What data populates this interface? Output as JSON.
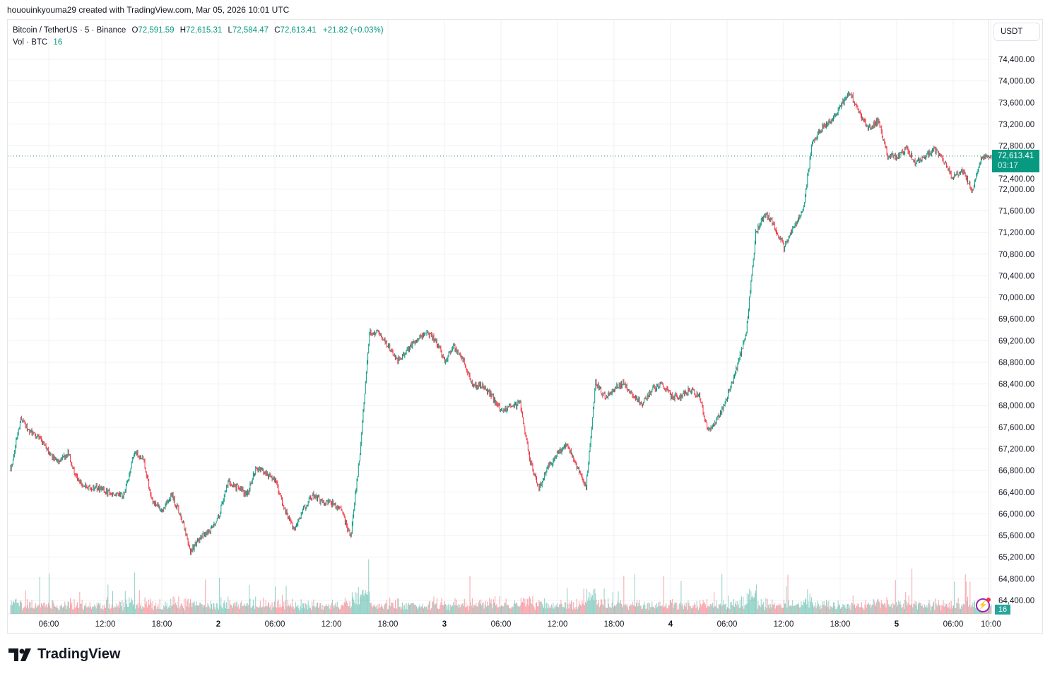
{
  "author_line": "hououinkyouma29 created with TradingView.com, Mar 05, 2026 10:01 UTC",
  "legend": {
    "symbol": "Bitcoin / TetherUS · 5 · Binance",
    "o_label": "O",
    "o": "72,591.59",
    "h_label": "H",
    "h": "72,615.31",
    "l_label": "L",
    "l": "72,584.47",
    "c_label": "C",
    "c": "72,613.41",
    "change": "+21.82 (+0.03%)",
    "vol_label": "Vol · BTC",
    "vol": "16"
  },
  "currency": "USDT",
  "last_price": "72,613.41",
  "countdown": "03:17",
  "volume_badge": "16",
  "logo_text": "TradingView",
  "icons": {
    "alert": "lightning-icon",
    "logo": "tradingview-logo-icon"
  },
  "colors": {
    "up": "#089981",
    "down": "#f23645",
    "price_label": "#089981",
    "volume_label": "#26a69a",
    "alert": "#9c27b0"
  },
  "chart_data": {
    "type": "candlestick",
    "symbol": "BTCUSDT",
    "interval": "5",
    "approx_hourly_closes_start": "2026-03-01 02:00",
    "approx_hourly_closes": [
      66870,
      67780,
      67520,
      67390,
      67130,
      66930,
      67130,
      66610,
      66480,
      66480,
      66410,
      66350,
      66350,
      67130,
      67000,
      66210,
      66080,
      66350,
      65950,
      65300,
      65560,
      65690,
      65950,
      66610,
      66480,
      66350,
      66870,
      66740,
      66610,
      66080,
      65690,
      66080,
      66350,
      66210,
      66210,
      66080,
      65560,
      67130,
      69350,
      69350,
      69090,
      68830,
      69020,
      69220,
      69350,
      69220,
      68830,
      69090,
      68830,
      68370,
      68370,
      68170,
      67910,
      67980,
      68040,
      67000,
      66480,
      66870,
      67130,
      67260,
      66870,
      66480,
      68430,
      68170,
      68300,
      68430,
      68170,
      68040,
      68300,
      68430,
      68170,
      68170,
      68300,
      68170,
      67520,
      67780,
      68170,
      68700,
      69350,
      71180,
      71570,
      71310,
      70910,
      71310,
      71570,
      72870,
      73130,
      73260,
      73530,
      73790,
      73400,
      73130,
      73260,
      72610,
      72610,
      72740,
      72480,
      72610,
      72740,
      72480,
      72220,
      72350,
      71960,
      72610,
      72613.41
    ],
    "y_ticks": [
      "74,400.00",
      "74,000.00",
      "73,600.00",
      "73,200.00",
      "72,800.00",
      "72,400.00",
      "72,000.00",
      "71,600.00",
      "71,200.00",
      "70,800.00",
      "70,400.00",
      "70,000.00",
      "69,600.00",
      "69,200.00",
      "68,800.00",
      "68,400.00",
      "68,000.00",
      "67,600.00",
      "67,200.00",
      "66,800.00",
      "66,400.00",
      "66,000.00",
      "65,600.00",
      "65,200.00",
      "64,800.00",
      "64,400.00"
    ],
    "ylim": [
      64400,
      74400
    ],
    "x_ticks": [
      {
        "label": "06:00",
        "time": "2026-03-01 06:00"
      },
      {
        "label": "12:00",
        "time": "2026-03-01 12:00"
      },
      {
        "label": "18:00",
        "time": "2026-03-01 18:00"
      },
      {
        "label": "2",
        "time": "2026-03-02 00:00"
      },
      {
        "label": "06:00",
        "time": "2026-03-02 06:00"
      },
      {
        "label": "12:00",
        "time": "2026-03-02 12:00"
      },
      {
        "label": "18:00",
        "time": "2026-03-02 18:00"
      },
      {
        "label": "3",
        "time": "2026-03-03 00:00"
      },
      {
        "label": "06:00",
        "time": "2026-03-03 06:00"
      },
      {
        "label": "12:00",
        "time": "2026-03-03 12:00"
      },
      {
        "label": "18:00",
        "time": "2026-03-03 18:00"
      },
      {
        "label": "4",
        "time": "2026-03-04 00:00"
      },
      {
        "label": "06:00",
        "time": "2026-03-04 06:00"
      },
      {
        "label": "12:00",
        "time": "2026-03-04 12:00"
      },
      {
        "label": "18:00",
        "time": "2026-03-04 18:00"
      },
      {
        "label": "5",
        "time": "2026-03-05 00:00"
      },
      {
        "label": "06:00",
        "time": "2026-03-05 06:00"
      },
      {
        "label": "10:00",
        "time": "2026-03-05 10:00"
      }
    ],
    "grid": true,
    "volume_panel": true,
    "last_volume": 16
  }
}
